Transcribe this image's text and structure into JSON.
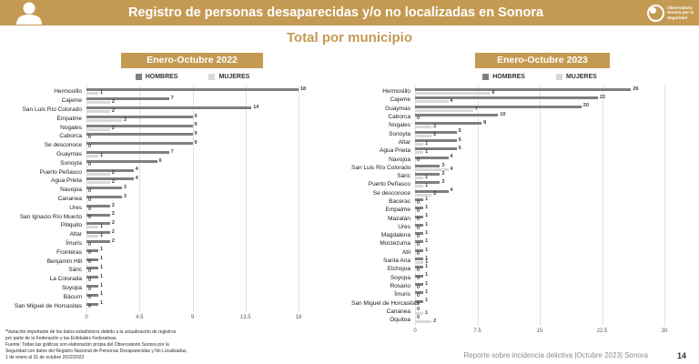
{
  "header": {
    "title": "Registro de personas desaparecidas y/o no localizadas en Sonora",
    "logo_text": [
      "Observatorio",
      "Sonora por la",
      "Seguridad"
    ]
  },
  "subtitle": "Total por municipio",
  "colors": {
    "gold": "#C49A53",
    "hombres": "#7F7F7F",
    "mujeres": "#D9D9D9"
  },
  "chart_data": [
    {
      "type": "bar",
      "orientation": "horizontal",
      "title": "Enero-Octubre 2022",
      "legend": [
        "HOMBRES",
        "MUJERES"
      ],
      "legend_position": "top",
      "grid": true,
      "xlim": [
        0,
        18
      ],
      "xticks": [
        "0",
        "4.5",
        "9",
        "13.5",
        "18"
      ],
      "categories": [
        "Hermosillo",
        "Cajeme",
        "San Luis Río Colorado",
        "Empalme",
        "Nogales",
        "Caborca",
        "Se desconoce",
        "Guaymas",
        "Sonoyta",
        "Puerto Peñasco",
        "Agua Prieta",
        "Navojoa",
        "Cananea",
        "Ures",
        "San Ignacio Río Muerto",
        "Pitiquito",
        "Altar",
        "Ímuris",
        "Fronteras",
        "Benjamín Hill",
        "Sáric",
        "La Colorada",
        "Soyopa",
        "Bácum",
        "San Miguel de Horcasitas"
      ],
      "series": [
        {
          "name": "HOMBRES",
          "values": [
            18,
            7,
            14,
            9,
            9,
            9,
            9,
            7,
            6,
            4,
            4,
            3,
            3,
            2,
            2,
            2,
            2,
            2,
            1,
            1,
            1,
            1,
            1,
            1,
            1
          ]
        },
        {
          "name": "MUJERES",
          "values": [
            1,
            2,
            2,
            3,
            2,
            0,
            0,
            1,
            0,
            2,
            2,
            0,
            0,
            0,
            0,
            1,
            1,
            0,
            0,
            0,
            0,
            0,
            0,
            0,
            0
          ]
        }
      ]
    },
    {
      "type": "bar",
      "orientation": "horizontal",
      "title": "Enero-Octubre 2023",
      "legend": [
        "HOMBRES",
        "MUJERES"
      ],
      "legend_position": "top",
      "grid": true,
      "xlim": [
        0,
        30
      ],
      "xticks": [
        "0",
        "7.5",
        "15",
        "22.5",
        "30"
      ],
      "categories": [
        "Hermosillo",
        "Cajeme",
        "Guaymas",
        "Caborca",
        "Nogales",
        "Sonoyta",
        "Altar",
        "Agua Prieta",
        "Navojoa",
        "San Luis Río Colorado",
        "Sáric",
        "Puerto Peñasco",
        "Se desconoce",
        "Bacerac",
        "Empalme",
        "Mazatán",
        "Ures",
        "Magdalena",
        "Moctezuma",
        "Atil",
        "Santa Ana",
        "Etchojoa",
        "Soyopa",
        "Rosario",
        "Ímuris",
        "San Miguel de Horcasitas",
        "Cananea",
        "Oquitoa"
      ],
      "series": [
        {
          "name": "HOMBRES",
          "values": [
            26,
            22,
            20,
            10,
            8,
            5,
            5,
            5,
            4,
            3,
            3,
            3,
            4,
            1,
            1,
            1,
            1,
            1,
            1,
            1,
            1,
            1,
            1,
            1,
            1,
            1,
            0,
            0
          ]
        },
        {
          "name": "MUJERES",
          "values": [
            9,
            4,
            7,
            0,
            2,
            2,
            1,
            1,
            0,
            4,
            1,
            1,
            2,
            0,
            0,
            0,
            0,
            0,
            0,
            0,
            1,
            0,
            0,
            0,
            0,
            0,
            1,
            2
          ]
        }
      ]
    }
  ],
  "footnote": [
    "*Variación importante de los datos estadísticos debido a  la actualización de registros",
    "por parte de la Federación y las Entidades Federativas",
    "Fuente: Todas las gráficas son elaboración propia del Observatorio Sonora por la",
    "Seguridad con datos del Registro Nacional de Personas Desaparecidas y No Localizadas,",
    "1 de enero al 31 de octubre 2022/2023"
  ],
  "footer": {
    "report": "Reporte sobre incidencia delictiva |Octubre 2023| Sonora",
    "page": "14"
  }
}
